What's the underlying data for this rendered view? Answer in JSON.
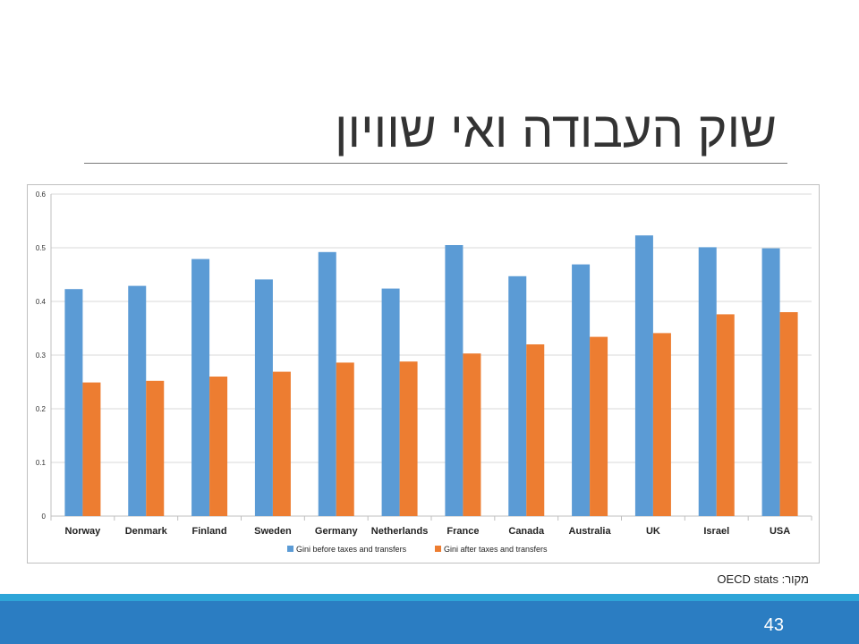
{
  "slide": {
    "title": "שוק העבודה ואי שוויון",
    "source": "מקור: OECD stats",
    "page_number": "43"
  },
  "colors": {
    "series_before": "#5b9bd5",
    "series_after": "#ed7d31",
    "footer": "#2b7dc2",
    "footer_accent": "#2ea5d8"
  },
  "chart_data": {
    "type": "bar",
    "title": "",
    "xlabel": "",
    "ylabel": "",
    "ylim": [
      0,
      0.6
    ],
    "yticks": [
      "0",
      "0.1",
      "0.2",
      "0.3",
      "0.4",
      "0.5",
      "0.6"
    ],
    "grid": true,
    "legend_position": "bottom",
    "categories": [
      "Norway",
      "Denmark",
      "Finland",
      "Sweden",
      "Germany",
      "Netherlands",
      "France",
      "Canada",
      "Australia",
      "UK",
      "Israel",
      "USA"
    ],
    "series": [
      {
        "name": "Gini before taxes and transfers",
        "values": [
          0.423,
          0.429,
          0.479,
          0.441,
          0.492,
          0.424,
          0.505,
          0.447,
          0.469,
          0.523,
          0.501,
          0.499
        ]
      },
      {
        "name": "Gini after taxes and transfers",
        "values": [
          0.249,
          0.252,
          0.26,
          0.269,
          0.286,
          0.288,
          0.303,
          0.32,
          0.334,
          0.341,
          0.376,
          0.38
        ]
      }
    ]
  }
}
